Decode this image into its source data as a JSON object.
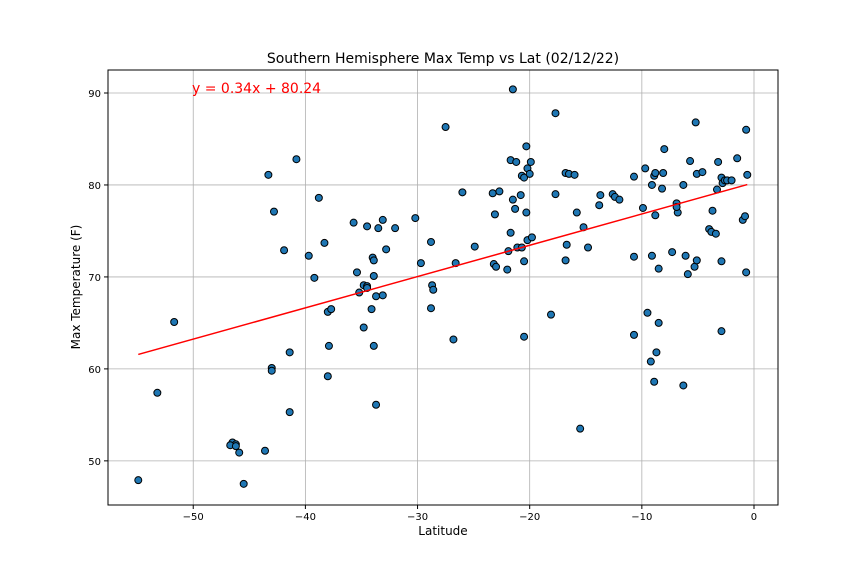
{
  "chart_data": {
    "type": "scatter",
    "title": "Southern Hemisphere Max Temp vs Lat (02/12/22)",
    "x_label": "Latitude",
    "y_label": "Max Temperature (F)",
    "annotation": "y = 0.34x + 80.24",
    "annotation_color": "#ff0000",
    "xlim": [
      -57.6,
      2.14
    ],
    "ylim": [
      45.2,
      92.5
    ],
    "xticks": [
      {
        "value": -50,
        "label": "−50"
      },
      {
        "value": -40,
        "label": "−40"
      },
      {
        "value": -30,
        "label": "−30"
      },
      {
        "value": -20,
        "label": "−20"
      },
      {
        "value": -10,
        "label": "−10"
      },
      0
    ],
    "yticks": [
      50,
      60,
      70,
      80,
      90
    ],
    "grid": true,
    "points": {
      "color": "#1f77b4",
      "edge_color": "#000000",
      "x": [
        -54.9,
        -53.2,
        -51.7,
        -43.3,
        -42.8,
        -40.8,
        -41.9,
        -41.4,
        -41.4,
        -43.0,
        -43.0,
        -43.6,
        -46.5,
        -46.2,
        -46.7,
        -46.2,
        -45.9,
        -45.5,
        -38.8,
        -39.7,
        -39.2,
        -38.3,
        -38.0,
        -37.7,
        -37.9,
        -38.0,
        -35.7,
        -35.4,
        -35.2,
        -34.5,
        -34.8,
        -34.5,
        -34.5,
        -34.8,
        -34.0,
        -33.9,
        -33.9,
        -34.1,
        -33.7,
        -33.9,
        -33.7,
        -33.5,
        -33.1,
        -32.8,
        -33.1,
        -32.0,
        -30.2,
        -29.7,
        -28.8,
        -28.7,
        -28.6,
        -28.8,
        -27.5,
        -26.8,
        -26.6,
        -26.0,
        -24.9,
        -23.3,
        -22.7,
        -23.1,
        -23.2,
        -23.0,
        -21.5,
        -21.7,
        -21.2,
        -21.7,
        -21.5,
        -21.3,
        -21.9,
        -22.0,
        -21.1,
        -20.8,
        -20.7,
        -20.5,
        -20.3,
        -20.2,
        -20.0,
        -19.9,
        -20.3,
        -20.2,
        -19.8,
        -20.5,
        -20.7,
        -20.5,
        -18.1,
        -17.7,
        -17.7,
        -16.8,
        -16.5,
        -16.0,
        -16.7,
        -16.8,
        -15.8,
        -15.2,
        -14.8,
        -15.5,
        -13.7,
        -13.8,
        -12.6,
        -12.4,
        -12.0,
        -10.7,
        -10.7,
        -10.7,
        -9.7,
        -9.1,
        -8.9,
        -8.8,
        -9.9,
        -8.8,
        -9.1,
        -9.5,
        -9.2,
        -8.7,
        -8.9,
        -8.5,
        -8.5,
        -8.2,
        -8.1,
        -8.0,
        -7.3,
        -6.9,
        -6.8,
        -6.9,
        -6.3,
        -6.1,
        -5.9,
        -6.3,
        -5.7,
        -5.2,
        -5.1,
        -4.6,
        -5.3,
        -5.1,
        -4.0,
        -3.8,
        -3.7,
        -3.4,
        -3.3,
        -3.2,
        -2.9,
        -2.8,
        -2.6,
        -2.4,
        -2.0,
        -2.9,
        -2.9,
        -1.5,
        -1.0,
        -0.8,
        -0.7,
        -0.6,
        -0.7
      ],
      "y": [
        47.9,
        57.4,
        65.1,
        81.1,
        77.1,
        82.8,
        72.9,
        61.8,
        55.3,
        60.1,
        59.8,
        51.1,
        52.0,
        51.8,
        51.7,
        51.6,
        50.9,
        47.5,
        78.6,
        72.3,
        69.9,
        73.7,
        66.2,
        66.5,
        62.5,
        59.2,
        75.9,
        70.5,
        68.3,
        75.5,
        69.1,
        69.0,
        68.8,
        64.5,
        72.1,
        71.8,
        70.1,
        66.5,
        67.9,
        62.5,
        56.1,
        75.3,
        76.2,
        73.0,
        68.0,
        75.3,
        76.4,
        71.5,
        73.8,
        69.1,
        68.6,
        66.6,
        86.3,
        63.2,
        71.5,
        79.2,
        73.3,
        79.1,
        79.3,
        76.8,
        71.4,
        71.1,
        90.4,
        82.7,
        82.5,
        74.8,
        78.4,
        77.4,
        72.8,
        70.8,
        73.2,
        78.9,
        81.0,
        80.8,
        84.2,
        81.8,
        81.2,
        82.5,
        77.0,
        74.0,
        74.3,
        71.7,
        73.2,
        63.5,
        65.9,
        87.8,
        79.0,
        81.3,
        81.2,
        81.1,
        73.5,
        71.8,
        77.0,
        75.4,
        73.2,
        53.5,
        78.9,
        77.8,
        79.0,
        78.7,
        78.4,
        80.9,
        72.2,
        63.7,
        81.8,
        80.0,
        81.0,
        81.3,
        77.5,
        76.7,
        72.3,
        66.1,
        60.8,
        61.8,
        58.6,
        65.0,
        70.9,
        79.6,
        81.3,
        83.9,
        72.7,
        78.0,
        77.0,
        77.6,
        80.0,
        72.3,
        70.3,
        58.2,
        82.6,
        86.8,
        81.2,
        81.4,
        71.1,
        71.8,
        75.2,
        74.9,
        77.2,
        74.7,
        79.5,
        82.5,
        80.8,
        80.2,
        80.5,
        80.5,
        80.5,
        71.7,
        64.1,
        82.9,
        76.2,
        76.6,
        86.0,
        81.1,
        70.5
      ]
    },
    "regression": {
      "color": "#ff0000",
      "x": [
        -54.9,
        -0.6
      ],
      "y": [
        61.57,
        80.04
      ]
    }
  }
}
